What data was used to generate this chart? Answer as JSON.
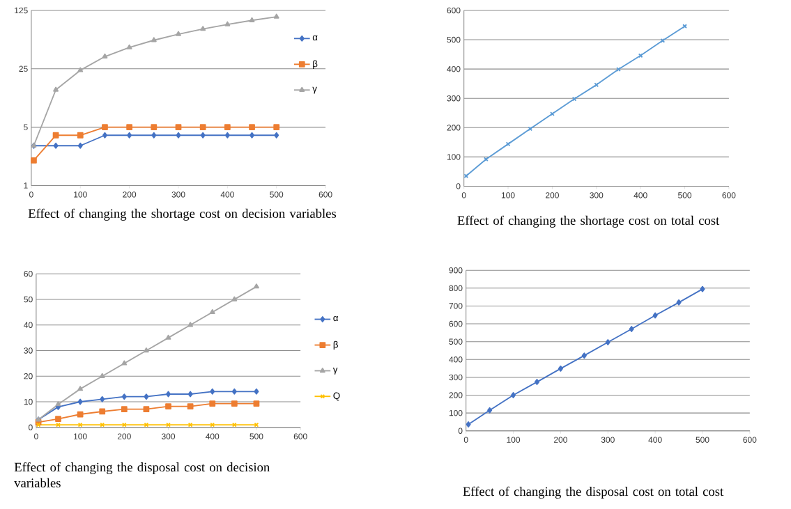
{
  "chart_data": [
    {
      "type": "line",
      "x": [
        5,
        50,
        100,
        150,
        200,
        250,
        300,
        350,
        400,
        450,
        500
      ],
      "xlim": [
        0,
        600
      ],
      "xticks": [
        0,
        100,
        200,
        300,
        400,
        500,
        600
      ],
      "ylim": [
        1,
        125
      ],
      "yticks": [
        1,
        5,
        25,
        125
      ],
      "log": "y",
      "grid": "y",
      "legend": "top right",
      "line_style": "solid",
      "series": [
        {
          "name": "α",
          "color": "#4472c4",
          "marker": "diamond",
          "values": [
            3,
            3,
            3,
            4,
            4,
            4,
            4,
            4,
            4,
            4,
            4
          ]
        },
        {
          "name": "β",
          "color": "#ed7d31",
          "marker": "square",
          "values": [
            2,
            4,
            4,
            5,
            5,
            5,
            5,
            5,
            5,
            5,
            5
          ]
        },
        {
          "name": "γ",
          "color": "#a5a5a5",
          "marker": "triangle",
          "values": [
            3,
            14,
            24,
            35,
            45,
            55,
            65,
            75,
            85,
            95,
            105
          ]
        }
      ],
      "annotations": [
        "Effect of changing the shortage cost on decision variables"
      ]
    },
    {
      "type": "line",
      "x": [
        5,
        50,
        100,
        150,
        200,
        250,
        300,
        350,
        400,
        450,
        500
      ],
      "xlim": [
        0,
        600
      ],
      "xticks": [
        0,
        100,
        200,
        300,
        400,
        500,
        600
      ],
      "ylim": [
        0,
        600
      ],
      "yticks": [
        0,
        100,
        200,
        300,
        400,
        500,
        600
      ],
      "grid": "y",
      "line_style": "solid",
      "series": [
        {
          "color": "#5b9bd5",
          "marker": "cross",
          "values": [
            35,
            92,
            144,
            196,
            247,
            298,
            346,
            399,
            446,
            497,
            546
          ]
        }
      ],
      "annotations": [
        "Effect of changing the shortage cost on total cost"
      ]
    },
    {
      "type": "line",
      "x": [
        5,
        50,
        100,
        150,
        200,
        250,
        300,
        350,
        400,
        450,
        500
      ],
      "xlim": [
        0,
        600
      ],
      "xticks": [
        0,
        100,
        200,
        300,
        400,
        500,
        600
      ],
      "ylim": [
        0,
        60
      ],
      "yticks": [
        0,
        10,
        20,
        30,
        40,
        50,
        60
      ],
      "grid": "y",
      "legend": "right",
      "line_style": "solid",
      "series": [
        {
          "name": "α",
          "color": "#4472c4",
          "marker": "diamond",
          "values": [
            3,
            8,
            10,
            11,
            12,
            12,
            13,
            13,
            14,
            14,
            14
          ]
        },
        {
          "name": "β",
          "color": "#ed7d31",
          "marker": "square",
          "values": [
            2,
            3.3,
            5.1,
            6.2,
            7.1,
            7.1,
            8.2,
            8.2,
            9.3,
            9.3,
            9.3
          ]
        },
        {
          "name": "γ",
          "color": "#a5a5a5",
          "marker": "triangle",
          "values": [
            3,
            9,
            15,
            20,
            25,
            30,
            35,
            40,
            45,
            50,
            55
          ]
        },
        {
          "name": "Q",
          "color": "#ffc000",
          "marker": "cross",
          "values": [
            1,
            1,
            1,
            1,
            1,
            1,
            1,
            1,
            1,
            1,
            1
          ]
        }
      ],
      "annotations": [
        "Effect of changing the disposal cost on decision variables"
      ]
    },
    {
      "type": "line",
      "x": [
        5,
        50,
        100,
        150,
        200,
        250,
        300,
        350,
        400,
        450,
        500
      ],
      "xlim": [
        0,
        600
      ],
      "xticks": [
        0,
        100,
        200,
        300,
        400,
        500,
        600
      ],
      "ylim": [
        0,
        900
      ],
      "yticks": [
        0,
        100,
        200,
        300,
        400,
        500,
        600,
        700,
        800,
        900
      ],
      "grid": "y",
      "line_style": "solid",
      "series": [
        {
          "color": "#4472c4",
          "marker": "diamond",
          "values": [
            36,
            115,
            200,
            274,
            349,
            422,
            497,
            571,
            647,
            720,
            795
          ]
        }
      ],
      "annotations": [
        "Effect of changing the disposal cost on total cost"
      ]
    }
  ]
}
